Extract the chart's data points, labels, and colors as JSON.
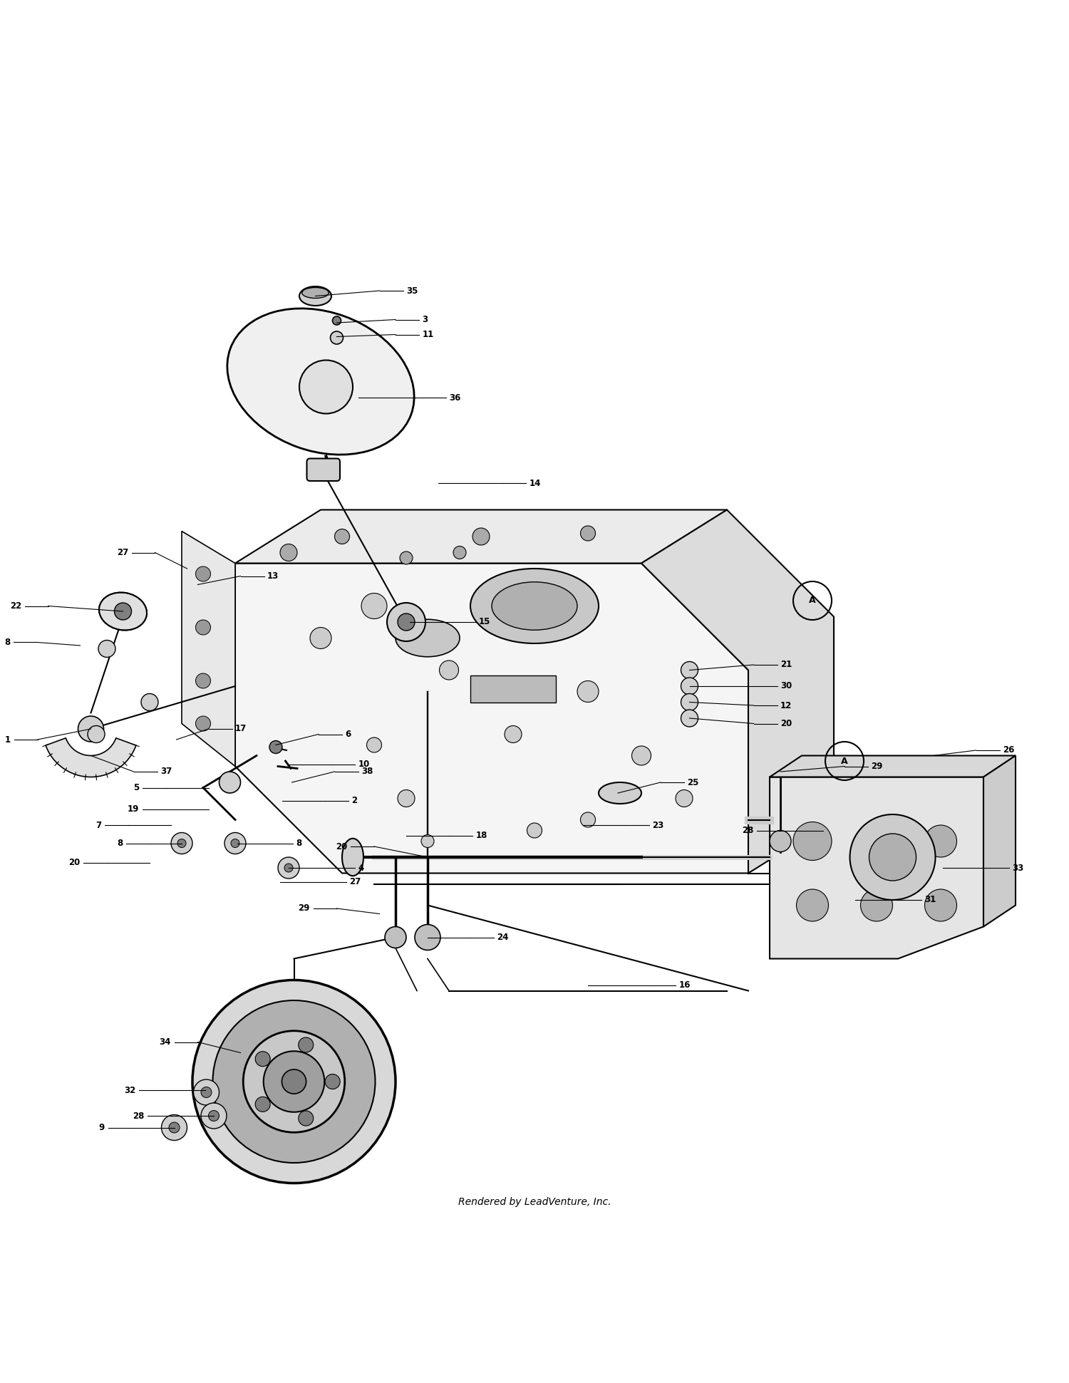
{
  "title": "",
  "footer": "Rendered by LeadVenture, Inc.",
  "bg_color": "#ffffff",
  "line_color": "#000000",
  "fig_width": 15.0,
  "fig_height": 19.41,
  "watermark": "LEADVENTURE"
}
